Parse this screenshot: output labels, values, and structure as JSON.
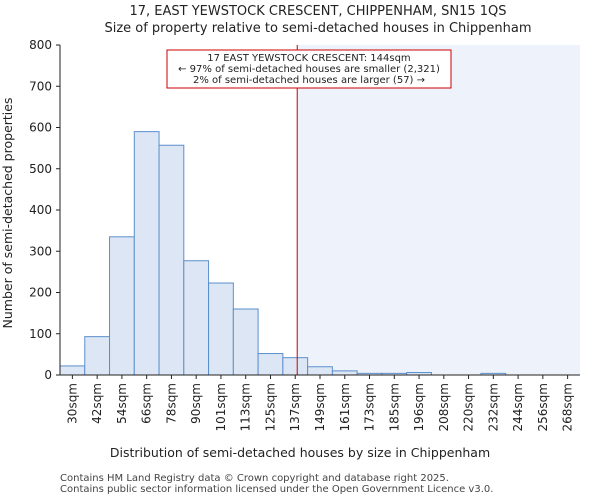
{
  "chart_data": {
    "type": "bar",
    "title_line1": "17, EAST YEWSTOCK CRESCENT, CHIPPENHAM, SN15 1QS",
    "title_line2": "Size of property relative to semi-detached houses in Chippenham",
    "xlabel": "Distribution of semi-detached houses by size in Chippenham",
    "ylabel": "Number of semi-detached properties",
    "categories": [
      "30sqm",
      "42sqm",
      "54sqm",
      "66sqm",
      "78sqm",
      "90sqm",
      "101sqm",
      "113sqm",
      "125sqm",
      "137sqm",
      "149sqm",
      "161sqm",
      "173sqm",
      "185sqm",
      "196sqm",
      "208sqm",
      "220sqm",
      "232sqm",
      "244sqm",
      "256sqm",
      "268sqm"
    ],
    "values": [
      22,
      93,
      335,
      590,
      557,
      277,
      223,
      160,
      52,
      42,
      20,
      10,
      4,
      4,
      6,
      0,
      0,
      4,
      0,
      0,
      0
    ],
    "ylim": [
      0,
      800
    ],
    "yticks": [
      0,
      100,
      200,
      300,
      400,
      500,
      600,
      700,
      800
    ],
    "property_value": 144,
    "bin_start": 30,
    "bin_width": 11.9,
    "annotation": {
      "line1": "17 EAST YEWSTOCK CRESCENT: 144sqm",
      "line2": "← 97% of semi-detached houses are smaller (2,321)",
      "line3": "2% of semi-detached houses are larger (57) →"
    },
    "colors": {
      "bar_fill": "#dce6f4",
      "bar_stroke": "#5b8fcc",
      "marker_line": "#cc0000",
      "highlight_bg": "#eef2fb",
      "annotation_border": "#cc0000"
    }
  },
  "footer": {
    "line1": "Contains HM Land Registry data © Crown copyright and database right 2025.",
    "line2": "Contains public sector information licensed under the Open Government Licence v3.0."
  }
}
